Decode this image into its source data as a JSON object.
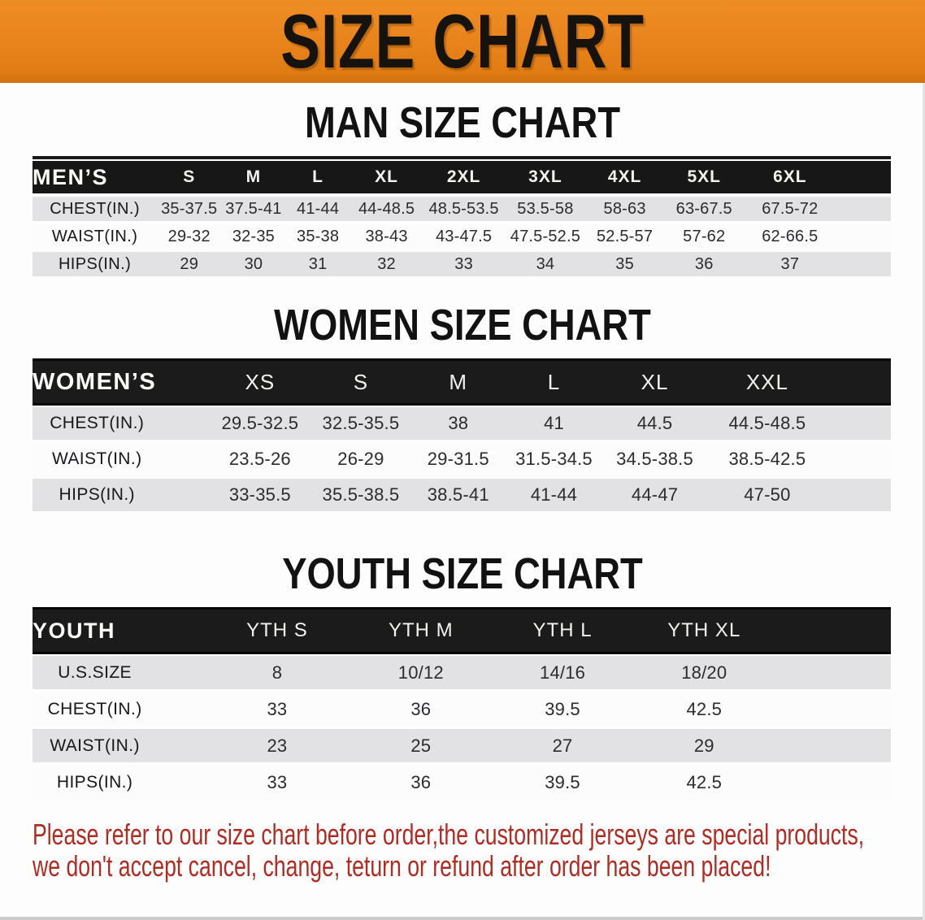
{
  "banner": {
    "title": "SIZE CHART",
    "bg_color": "#e8831c",
    "text_color": "#16130f"
  },
  "sections": [
    {
      "id": "men",
      "heading": "MAN SIZE CHART",
      "table": {
        "header_label": "MEN’S",
        "columns": [
          "S",
          "M",
          "L",
          "XL",
          "2XL",
          "3XL",
          "4XL",
          "5XL",
          "6XL"
        ],
        "rows": [
          {
            "label": "CHEST(IN.)",
            "values": [
              "35-37.5",
              "37.5-41",
              "41-44",
              "44-48.5",
              "48.5-53.5",
              "53.5-58",
              "58-63",
              "63-67.5",
              "67.5-72"
            ]
          },
          {
            "label": "WAIST(IN.)",
            "values": [
              "29-32",
              "32-35",
              "35-38",
              "38-43",
              "43-47.5",
              "47.5-52.5",
              "52.5-57",
              "57-62",
              "62-66.5"
            ]
          },
          {
            "label": "HIPS(IN.)",
            "values": [
              "29",
              "30",
              "31",
              "32",
              "33",
              "34",
              "35",
              "36",
              "37"
            ]
          }
        ]
      }
    },
    {
      "id": "women",
      "heading": "WOMEN SIZE CHART",
      "table": {
        "header_label": "WOMEN’S",
        "columns": [
          "XS",
          "S",
          "M",
          "L",
          "XL",
          "XXL"
        ],
        "rows": [
          {
            "label": "CHEST(IN.)",
            "values": [
              "29.5-32.5",
              "32.5-35.5",
              "38",
              "41",
              "44.5",
              "44.5-48.5"
            ]
          },
          {
            "label": "WAIST(IN.)",
            "values": [
              "23.5-26",
              "26-29",
              "29-31.5",
              "31.5-34.5",
              "34.5-38.5",
              "38.5-42.5"
            ]
          },
          {
            "label": "HIPS(IN.)",
            "values": [
              "33-35.5",
              "35.5-38.5",
              "38.5-41",
              "41-44",
              "44-47",
              "47-50"
            ]
          }
        ]
      }
    },
    {
      "id": "youth",
      "heading": "YOUTH SIZE CHART",
      "table": {
        "header_label": "YOUTH",
        "columns": [
          "YTH S",
          "YTH M",
          "YTH L",
          "YTH XL"
        ],
        "rows": [
          {
            "label": "U.S.SIZE",
            "values": [
              "8",
              "10/12",
              "14/16",
              "18/20"
            ]
          },
          {
            "label": "CHEST(IN.)",
            "values": [
              "33",
              "36",
              "39.5",
              "42.5"
            ]
          },
          {
            "label": "WAIST(IN.)",
            "values": [
              "23",
              "25",
              "27",
              "29"
            ]
          },
          {
            "label": "HIPS(IN.)",
            "values": [
              "33",
              "36",
              "39.5",
              "42.5"
            ]
          }
        ]
      }
    }
  ],
  "footer_note": {
    "lines": [
      "Please refer to our size chart before order,the customized jerseys are special products,",
      "we don't accept cancel, change, teturn or refund after order has been placed!"
    ],
    "color": "#ad2d24"
  },
  "colors": {
    "banner_orange": "#e8831c",
    "table_header_black": "#171717",
    "row_stripe_gray": "#e2e2e4",
    "row_stripe_white": "#fcfcfc",
    "note_red": "#ad2d24"
  }
}
